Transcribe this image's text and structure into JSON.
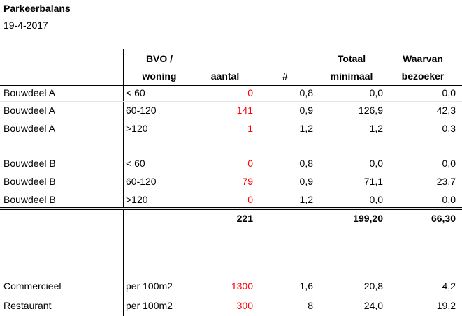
{
  "title": "Parkeerbalans",
  "date": "19-4-2017",
  "columns": [
    [
      "BVO /",
      "woning"
    ],
    [
      "aantal"
    ],
    [
      "#"
    ],
    [
      "Totaal",
      "minimaal"
    ],
    [
      "Waarvan",
      "bezoeker"
    ]
  ],
  "rows": [
    [
      "Bouwdeel A",
      "< 60",
      "0",
      "0,8",
      "0,0",
      "0,0"
    ],
    [
      "Bouwdeel A",
      "60-120",
      "141",
      "0,9",
      "126,9",
      "42,3"
    ],
    [
      "Bouwdeel A",
      ">120",
      "1",
      "1,2",
      "1,2",
      "0,3"
    ],
    [
      "Bouwdeel B",
      "< 60",
      "0",
      "0,8",
      "0,0",
      "0,0"
    ],
    [
      "Bouwdeel B",
      "60-120",
      "79",
      "0,9",
      "71,1",
      "23,7"
    ],
    [
      "Bouwdeel B",
      ">120",
      "0",
      "1,2",
      "0,0",
      "0,0"
    ]
  ],
  "totals": [
    "221",
    "199,20",
    "66,30"
  ],
  "other_rows": [
    [
      "Commercieel",
      "per 100m2",
      "1300",
      "1,6",
      "20,8",
      "4,2"
    ],
    [
      "Restaurant",
      "per 100m2",
      "300",
      "8",
      "24,0",
      "19,2"
    ]
  ]
}
